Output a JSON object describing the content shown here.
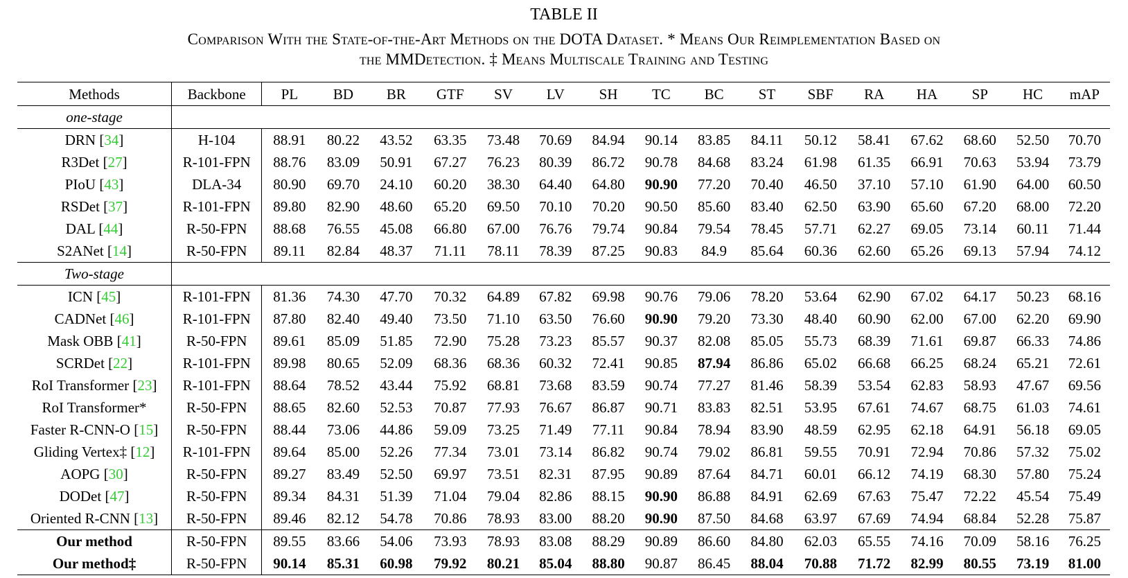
{
  "caption": {
    "label": "TABLE II",
    "line1": "Comparison With the State-of-the-Art Methods on the DOTA Dataset. * Means Our Reimplementation Based on",
    "line2": "the MMDetection. ‡ Means Multiscale Training and Testing"
  },
  "columns": [
    "Methods",
    "Backbone",
    "PL",
    "BD",
    "BR",
    "GTF",
    "SV",
    "LV",
    "SH",
    "TC",
    "BC",
    "ST",
    "SBF",
    "RA",
    "HA",
    "SP",
    "HC",
    "mAP"
  ],
  "groups": [
    {
      "label": "one-stage",
      "rows": [
        {
          "name": "DRN",
          "ref": "34",
          "backbone": "H-104",
          "values": [
            "88.91",
            "80.22",
            "43.52",
            "63.35",
            "73.48",
            "70.69",
            "84.94",
            "90.14",
            "83.85",
            "84.11",
            "50.12",
            "58.41",
            "67.62",
            "68.60",
            "52.50",
            "70.70"
          ],
          "bold": []
        },
        {
          "name": "R3Det",
          "ref": "27",
          "backbone": "R-101-FPN",
          "values": [
            "88.76",
            "83.09",
            "50.91",
            "67.27",
            "76.23",
            "80.39",
            "86.72",
            "90.78",
            "84.68",
            "83.24",
            "61.98",
            "61.35",
            "66.91",
            "70.63",
            "53.94",
            "73.79"
          ],
          "bold": []
        },
        {
          "name": "PIoU",
          "ref": "43",
          "backbone": "DLA-34",
          "values": [
            "80.90",
            "69.70",
            "24.10",
            "60.20",
            "38.30",
            "64.40",
            "64.80",
            "90.90",
            "77.20",
            "70.40",
            "46.50",
            "37.10",
            "57.10",
            "61.90",
            "64.00",
            "60.50"
          ],
          "bold": [
            7
          ]
        },
        {
          "name": "RSDet",
          "ref": "37",
          "backbone": "R-101-FPN",
          "values": [
            "89.80",
            "82.90",
            "48.60",
            "65.20",
            "69.50",
            "70.10",
            "70.20",
            "90.50",
            "85.60",
            "83.40",
            "62.50",
            "63.90",
            "65.60",
            "67.20",
            "68.00",
            "72.20"
          ],
          "bold": []
        },
        {
          "name": "DAL",
          "ref": "44",
          "backbone": "R-50-FPN",
          "values": [
            "88.68",
            "76.55",
            "45.08",
            "66.80",
            "67.00",
            "76.76",
            "79.74",
            "90.84",
            "79.54",
            "78.45",
            "57.71",
            "62.27",
            "69.05",
            "73.14",
            "60.11",
            "71.44"
          ],
          "bold": []
        },
        {
          "name": "S2ANet",
          "ref": "14",
          "backbone": "R-50-FPN",
          "values": [
            "89.11",
            "82.84",
            "48.37",
            "71.11",
            "78.11",
            "78.39",
            "87.25",
            "90.83",
            "84.9",
            "85.64",
            "60.36",
            "62.60",
            "65.26",
            "69.13",
            "57.94",
            "74.12"
          ],
          "bold": []
        }
      ]
    },
    {
      "label": "Two-stage",
      "rows": [
        {
          "name": "ICN",
          "ref": "45",
          "backbone": "R-101-FPN",
          "values": [
            "81.36",
            "74.30",
            "47.70",
            "70.32",
            "64.89",
            "67.82",
            "69.98",
            "90.76",
            "79.06",
            "78.20",
            "53.64",
            "62.90",
            "67.02",
            "64.17",
            "50.23",
            "68.16"
          ],
          "bold": []
        },
        {
          "name": "CADNet",
          "ref": "46",
          "backbone": "R-101-FPN",
          "values": [
            "87.80",
            "82.40",
            "49.40",
            "73.50",
            "71.10",
            "63.50",
            "76.60",
            "90.90",
            "79.20",
            "73.30",
            "48.40",
            "60.90",
            "62.00",
            "67.00",
            "62.20",
            "69.90"
          ],
          "bold": [
            7
          ]
        },
        {
          "name": "Mask OBB",
          "ref": "41",
          "backbone": "R-50-FPN",
          "values": [
            "89.61",
            "85.09",
            "51.85",
            "72.90",
            "75.28",
            "73.23",
            "85.57",
            "90.37",
            "82.08",
            "85.05",
            "55.73",
            "68.39",
            "71.61",
            "69.87",
            "66.33",
            "74.86"
          ],
          "bold": []
        },
        {
          "name": "SCRDet",
          "ref": "22",
          "backbone": "R-101-FPN",
          "values": [
            "89.98",
            "80.65",
            "52.09",
            "68.36",
            "68.36",
            "60.32",
            "72.41",
            "90.85",
            "87.94",
            "86.86",
            "65.02",
            "66.68",
            "66.25",
            "68.24",
            "65.21",
            "72.61"
          ],
          "bold": [
            8
          ]
        },
        {
          "name": "RoI Transformer",
          "ref": "23",
          "backbone": "R-101-FPN",
          "values": [
            "88.64",
            "78.52",
            "43.44",
            "75.92",
            "68.81",
            "73.68",
            "83.59",
            "90.74",
            "77.27",
            "81.46",
            "58.39",
            "53.54",
            "62.83",
            "58.93",
            "47.67",
            "69.56"
          ],
          "bold": []
        },
        {
          "name": "RoI Transformer*",
          "ref": "",
          "backbone": "R-50-FPN",
          "values": [
            "88.65",
            "82.60",
            "52.53",
            "70.87",
            "77.93",
            "76.67",
            "86.87",
            "90.71",
            "83.83",
            "82.51",
            "53.95",
            "67.61",
            "74.67",
            "68.75",
            "61.03",
            "74.61"
          ],
          "bold": []
        },
        {
          "name": "Faster R-CNN-O",
          "ref": "15",
          "backbone": "R-50-FPN",
          "values": [
            "88.44",
            "73.06",
            "44.86",
            "59.09",
            "73.25",
            "71.49",
            "77.11",
            "90.84",
            "78.94",
            "83.90",
            "48.59",
            "62.95",
            "62.18",
            "64.91",
            "56.18",
            "69.05"
          ],
          "bold": []
        },
        {
          "name": "Gliding Vertex‡",
          "ref": "12",
          "backbone": "R-101-FPN",
          "values": [
            "89.64",
            "85.00",
            "52.26",
            "77.34",
            "73.01",
            "73.14",
            "86.82",
            "90.74",
            "79.02",
            "86.81",
            "59.55",
            "70.91",
            "72.94",
            "70.86",
            "57.32",
            "75.02"
          ],
          "bold": []
        },
        {
          "name": "AOPG",
          "ref": "30",
          "backbone": "R-50-FPN",
          "values": [
            "89.27",
            "83.49",
            "52.50",
            "69.97",
            "73.51",
            "82.31",
            "87.95",
            "90.89",
            "87.64",
            "84.71",
            "60.01",
            "66.12",
            "74.19",
            "68.30",
            "57.80",
            "75.24"
          ],
          "bold": []
        },
        {
          "name": "DODet",
          "ref": "47",
          "backbone": "R-50-FPN",
          "values": [
            "89.34",
            "84.31",
            "51.39",
            "71.04",
            "79.04",
            "82.86",
            "88.15",
            "90.90",
            "86.88",
            "84.91",
            "62.69",
            "67.63",
            "75.47",
            "72.22",
            "45.54",
            "75.49"
          ],
          "bold": [
            7
          ]
        },
        {
          "name": "Oriented R-CNN",
          "ref": "13",
          "backbone": "R-50-FPN",
          "values": [
            "89.46",
            "82.12",
            "54.78",
            "70.86",
            "78.93",
            "83.00",
            "88.20",
            "90.90",
            "87.50",
            "84.68",
            "63.97",
            "67.69",
            "74.94",
            "68.84",
            "52.28",
            "75.87"
          ],
          "bold": [
            7
          ]
        }
      ]
    },
    {
      "label": "",
      "ours": true,
      "rows": [
        {
          "name": "Our method",
          "ref": "",
          "name_bold": true,
          "backbone": "R-50-FPN",
          "values": [
            "89.55",
            "83.66",
            "54.06",
            "73.93",
            "78.93",
            "83.08",
            "88.29",
            "90.89",
            "86.60",
            "84.80",
            "62.03",
            "65.55",
            "74.16",
            "70.09",
            "58.16",
            "76.25"
          ],
          "bold": []
        },
        {
          "name": "Our method‡",
          "ref": "",
          "name_bold": true,
          "backbone": "R-50-FPN",
          "values": [
            "90.14",
            "85.31",
            "60.98",
            "79.92",
            "80.21",
            "85.04",
            "88.80",
            "90.87",
            "86.45",
            "88.04",
            "70.88",
            "71.72",
            "82.99",
            "80.55",
            "73.19",
            "81.00"
          ],
          "bold": [
            0,
            1,
            2,
            3,
            4,
            5,
            6,
            9,
            10,
            11,
            12,
            13,
            14,
            15
          ]
        }
      ]
    }
  ]
}
